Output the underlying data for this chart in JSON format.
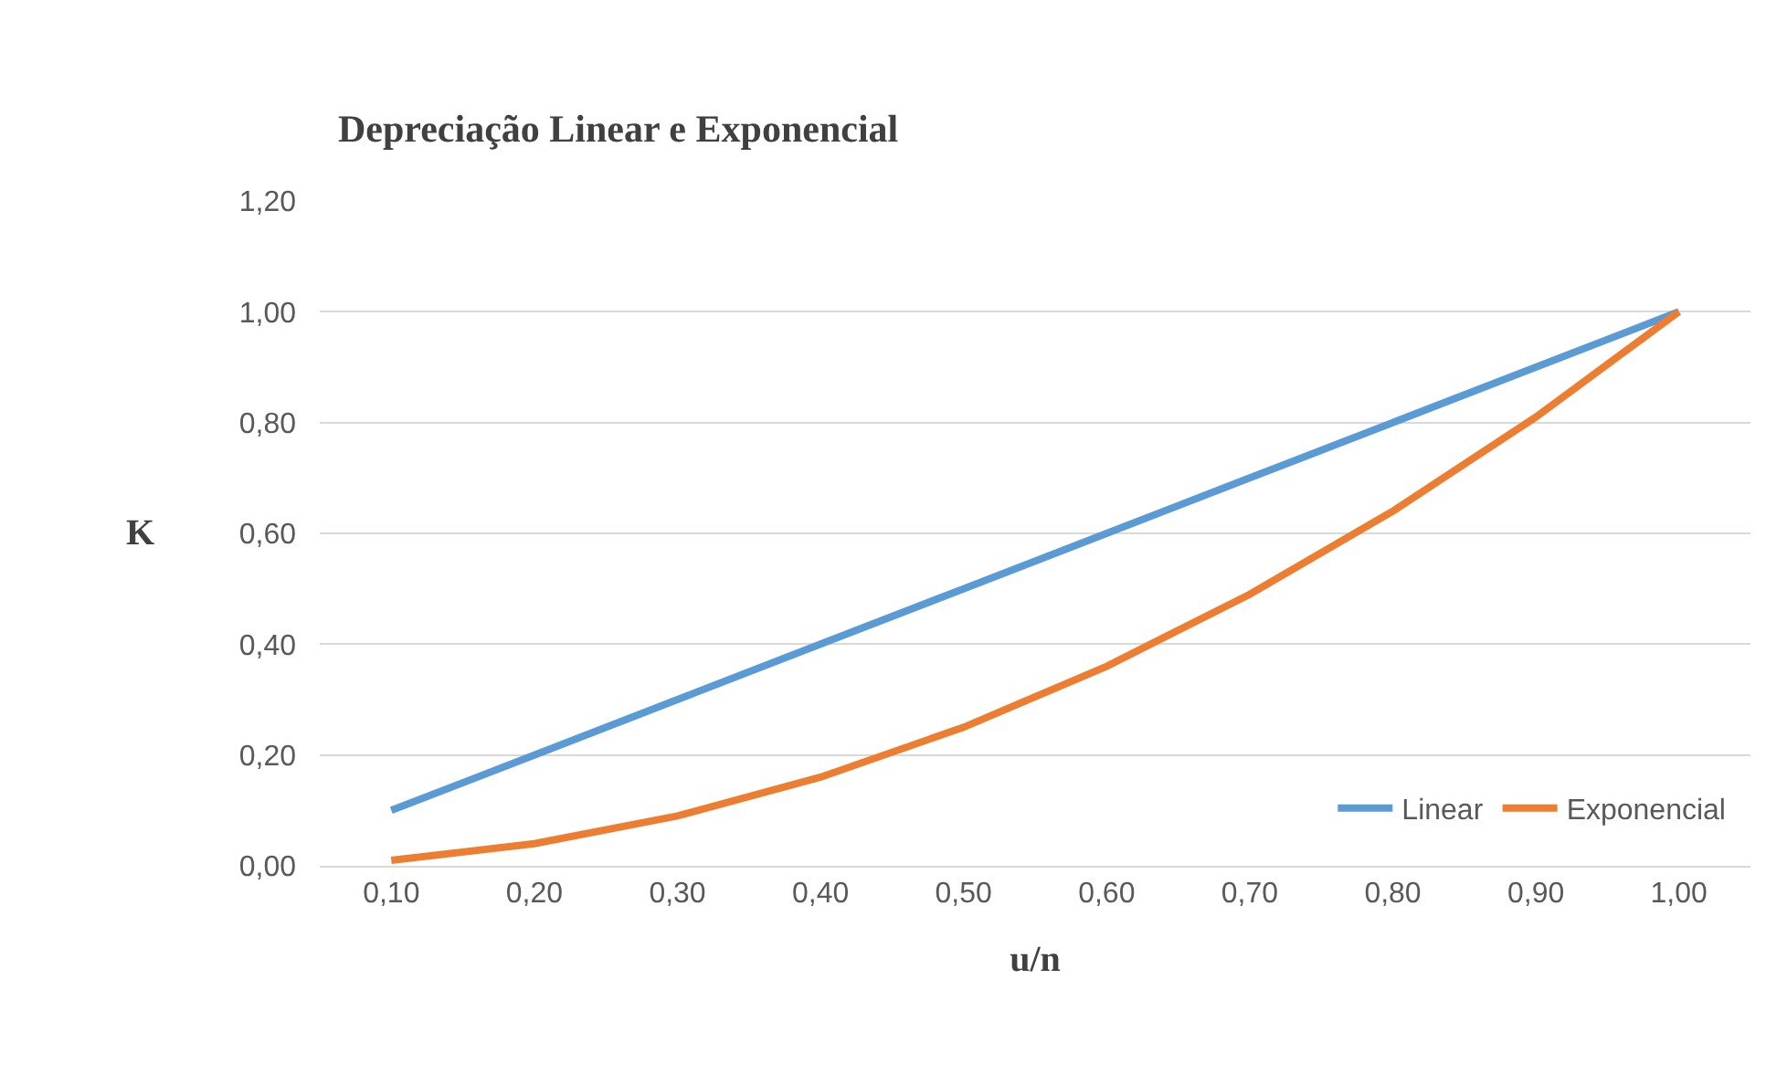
{
  "chart_data": {
    "type": "line",
    "title": "Depreciação Linear e Exponencial",
    "xlabel": "u/n",
    "ylabel": "K",
    "categories": [
      "0,10",
      "0,20",
      "0,30",
      "0,40",
      "0,50",
      "0,60",
      "0,70",
      "0,80",
      "0,90",
      "1,00"
    ],
    "series": [
      {
        "name": "Linear",
        "color": "#5b9bd5",
        "values": [
          0.1,
          0.2,
          0.3,
          0.4,
          0.5,
          0.6,
          0.7,
          0.8,
          0.9,
          1.0
        ]
      },
      {
        "name": "Exponencial",
        "color": "#ed7d31",
        "values": [
          0.01,
          0.04,
          0.09,
          0.16,
          0.25,
          0.36,
          0.49,
          0.64,
          0.81,
          1.0
        ]
      }
    ],
    "ylim": [
      0,
      1.2
    ],
    "yticks": [
      {
        "value": 0,
        "label": "0,00"
      },
      {
        "value": 0.2,
        "label": "0,20"
      },
      {
        "value": 0.4,
        "label": "0,40"
      },
      {
        "value": 0.6,
        "label": "0,60"
      },
      {
        "value": 0.8,
        "label": "0,80"
      },
      {
        "value": 1.0,
        "label": "1,00"
      },
      {
        "value": 1.2,
        "label": "1,20"
      }
    ],
    "grid": "y",
    "legend": "bottom right",
    "marker": "none",
    "line_style": "solid"
  }
}
